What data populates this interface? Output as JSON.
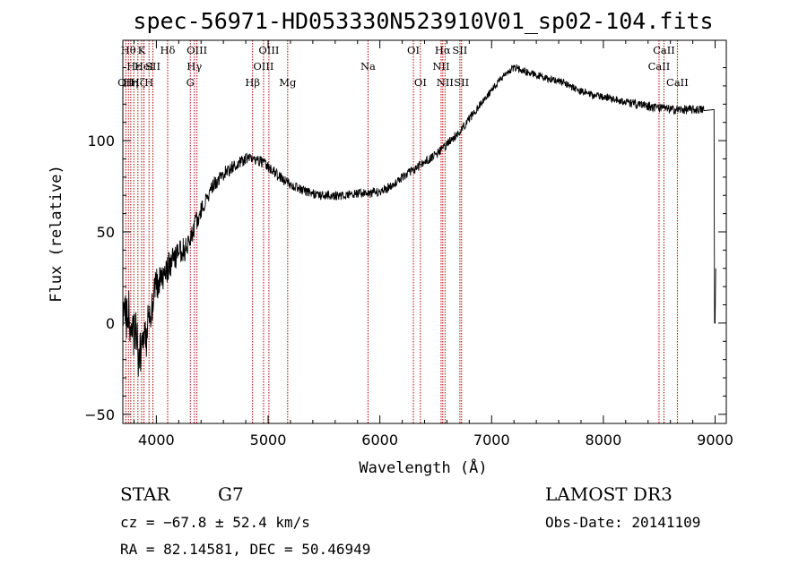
{
  "chart_data": {
    "type": "line",
    "title": "spec-56971-HD053330N523910V01_sp02-104.fits",
    "xlabel": "Wavelength (Å)",
    "ylabel": "Flux (relative)",
    "xlim": [
      3700,
      9100
    ],
    "ylim": [
      -55,
      155
    ],
    "xticks": [
      {
        "value": 4000,
        "label": "4000"
      },
      {
        "value": 5000,
        "label": "5000"
      },
      {
        "value": 6000,
        "label": "6000"
      },
      {
        "value": 7000,
        "label": "7000"
      },
      {
        "value": 8000,
        "label": "8000"
      },
      {
        "value": 9000,
        "label": "9000"
      }
    ],
    "yticks": [
      {
        "value": -50,
        "label": "−50"
      },
      {
        "value": 0,
        "label": "0"
      },
      {
        "value": 50,
        "label": "50"
      },
      {
        "value": 100,
        "label": "100"
      }
    ],
    "series": [
      {
        "x": [
          3700,
          3750,
          3800,
          3850,
          3900,
          3950,
          4000,
          4050,
          4100,
          4150,
          4200,
          4250,
          4300,
          4350,
          4400,
          4500,
          4600,
          4700,
          4800,
          4900,
          5000,
          5100,
          5200,
          5300,
          5400,
          5500,
          5600,
          5700,
          5800,
          5900,
          6000,
          6100,
          6200,
          6300,
          6400,
          6500,
          6600,
          6700,
          6800,
          6900,
          7000,
          7100,
          7200,
          7300,
          7400,
          7500,
          7600,
          7700,
          7800,
          7900,
          8000,
          8100,
          8200,
          8300,
          8400,
          8500,
          8600,
          8700,
          8800,
          8900,
          8990,
          8995,
          9000,
          9005
        ],
        "y": [
          5,
          5,
          -5,
          -18,
          -10,
          8,
          20,
          25,
          30,
          34,
          38,
          40,
          45,
          55,
          62,
          75,
          82,
          86,
          90,
          90,
          86,
          80,
          76,
          73,
          71,
          70,
          70,
          70,
          71,
          71,
          72,
          75,
          80,
          84,
          88,
          92,
          98,
          104,
          112,
          120,
          128,
          135,
          140,
          138,
          136,
          134,
          133,
          130,
          127,
          125,
          124,
          123,
          121,
          120,
          119,
          118,
          117,
          117,
          117,
          117,
          117,
          0,
          0,
          30
        ],
        "noise": [
          14,
          14,
          16,
          16,
          14,
          12,
          10,
          9,
          8,
          8,
          7,
          7,
          6,
          5,
          5,
          4,
          4,
          3.5,
          3,
          3,
          3,
          3,
          2.5,
          2.5,
          2.5,
          2.5,
          2.5,
          2.5,
          2.5,
          2.5,
          2.5,
          2.5,
          2.5,
          2.5,
          2.5,
          2.5,
          2.5,
          2.5,
          2.5,
          2,
          2,
          2,
          2,
          2,
          2,
          2,
          2,
          2,
          2,
          2,
          2,
          2,
          2,
          2.5,
          2.5,
          2.5,
          2.5,
          2.5,
          2.5,
          2.5,
          2.5,
          0,
          0,
          0
        ]
      }
    ],
    "lines": [
      {
        "x": 3727,
        "label": "OII",
        "row": 2
      },
      {
        "x": 3750,
        "label": "Hθ",
        "row": 0
      },
      {
        "x": 3771,
        "label": "Hη",
        "row": 2
      },
      {
        "x": 3798,
        "label": "Hε",
        "row": 1
      },
      {
        "x": 3835,
        "label": "Hζ",
        "row": 2
      },
      {
        "x": 3868,
        "label": "K",
        "row": 0
      },
      {
        "x": 3889,
        "label": "HeI",
        "row": 1
      },
      {
        "x": 3934,
        "label": "H",
        "row": 2
      },
      {
        "x": 3969,
        "label": "SII",
        "row": 1
      },
      {
        "x": 4101,
        "label": "Hδ",
        "row": 0
      },
      {
        "x": 4304,
        "label": "G",
        "row": 2
      },
      {
        "x": 4340,
        "label": "Hγ",
        "row": 1
      },
      {
        "x": 4363,
        "label": "OIII",
        "row": 0
      },
      {
        "x": 4861,
        "label": "Hβ",
        "row": 2
      },
      {
        "x": 4959,
        "label": "OIII",
        "row": 1
      },
      {
        "x": 5007,
        "label": "OIII",
        "row": 0
      },
      {
        "x": 5175,
        "label": "Mg",
        "row": 2
      },
      {
        "x": 5894,
        "label": "Na",
        "row": 1
      },
      {
        "x": 6300,
        "label": "OI",
        "row": 0
      },
      {
        "x": 6363,
        "label": "OI",
        "row": 2
      },
      {
        "x": 6548,
        "label": "NII",
        "row": 1
      },
      {
        "x": 6563,
        "label": "Hα",
        "row": 0
      },
      {
        "x": 6583,
        "label": "NII",
        "row": 2
      },
      {
        "x": 6716,
        "label": "SII",
        "row": 0
      },
      {
        "x": 6731,
        "label": "SII",
        "row": 2
      },
      {
        "x": 8498,
        "label": "CaII",
        "row": 1
      },
      {
        "x": 8542,
        "label": "CaII",
        "row": 0
      },
      {
        "x": 8662,
        "label": "CaII",
        "row": 2
      }
    ],
    "line_color": "#b00000",
    "spectrum_color": "#000000"
  },
  "info": {
    "class": "STAR",
    "subclass": "G7",
    "survey": "LAMOST DR3",
    "cz": "cz = −67.8 ± 52.4 km/s",
    "obsdate": "Obs-Date: 20141109",
    "radec": "RA =  82.14581, DEC =  50.46949"
  }
}
